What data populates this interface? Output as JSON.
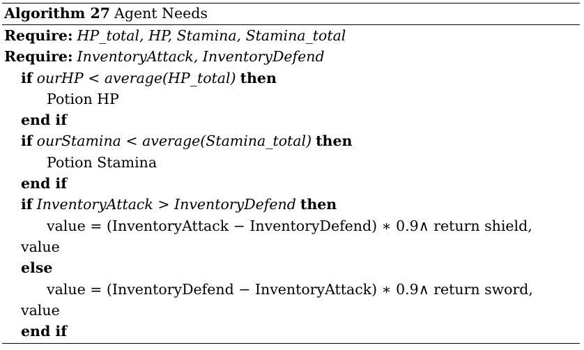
{
  "algorithm": {
    "label": "Algorithm 27",
    "title": "Agent Needs",
    "require1": {
      "kw": "Require:",
      "expr": "HP_total, HP, Stamina, Stamina_total"
    },
    "require2": {
      "kw": "Require:",
      "expr": "InventoryAttack, InventoryDefend"
    },
    "if1": {
      "kw_if": "if",
      "cond": "ourHP < average(HP_total)",
      "kw_then": "then",
      "body": "Potion HP",
      "kw_end": "end if"
    },
    "if2": {
      "kw_if": "if",
      "cond": "ourStamina < average(Stamina_total)",
      "kw_then": "then",
      "body": "Potion Stamina",
      "kw_end": "end if"
    },
    "if3": {
      "kw_if": "if",
      "cond": "InventoryAttack > InventoryDefend",
      "kw_then": "then",
      "body_line1": "value = (InventoryAttack − InventoryDefend) ∗ 0.9∧ return shield,",
      "body_line2": "value",
      "kw_else": "else",
      "else_line1": "value = (InventoryDefend − InventoryAttack) ∗ 0.9∧ return sword,",
      "else_line2": "value",
      "kw_end": "end if"
    }
  }
}
